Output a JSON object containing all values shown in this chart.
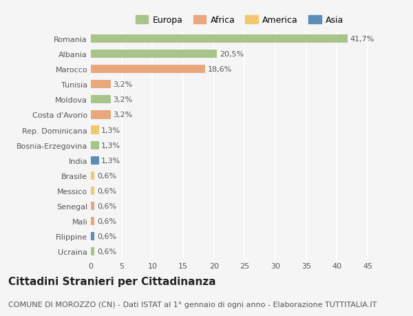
{
  "categories": [
    "Romania",
    "Albania",
    "Marocco",
    "Tunisia",
    "Moldova",
    "Costa d'Avorio",
    "Rep. Dominicana",
    "Bosnia-Erzegovina",
    "India",
    "Brasile",
    "Messico",
    "Senegal",
    "Mali",
    "Filippine",
    "Ucraina"
  ],
  "values": [
    41.7,
    20.5,
    18.6,
    3.2,
    3.2,
    3.2,
    1.3,
    1.3,
    1.3,
    0.6,
    0.6,
    0.6,
    0.6,
    0.6,
    0.6
  ],
  "labels": [
    "41,7%",
    "20,5%",
    "18,6%",
    "3,2%",
    "3,2%",
    "3,2%",
    "1,3%",
    "1,3%",
    "1,3%",
    "0,6%",
    "0,6%",
    "0,6%",
    "0,6%",
    "0,6%",
    "0,6%"
  ],
  "colors": [
    "#a8c48a",
    "#a8c48a",
    "#e8a87c",
    "#e8a87c",
    "#a8c48a",
    "#e8a87c",
    "#f0c96e",
    "#a8c48a",
    "#5b8db8",
    "#f0c96e",
    "#f0c96e",
    "#e8a87c",
    "#e8a87c",
    "#5b8db8",
    "#a8c48a"
  ],
  "legend_labels": [
    "Europa",
    "Africa",
    "America",
    "Asia"
  ],
  "legend_colors": [
    "#a8c48a",
    "#e8a87c",
    "#f0c96e",
    "#5b8db8"
  ],
  "xlim": [
    0,
    47
  ],
  "xticks": [
    0,
    5,
    10,
    15,
    20,
    25,
    30,
    35,
    40,
    45
  ],
  "title": "Cittadini Stranieri per Cittadinanza",
  "subtitle": "COMUNE DI MOROZZO (CN) - Dati ISTAT al 1° gennaio di ogni anno - Elaborazione TUTTITALIA.IT",
  "bg_color": "#f5f5f5",
  "bar_height": 0.55,
  "grid_color": "#ffffff",
  "title_fontsize": 11,
  "subtitle_fontsize": 8,
  "label_fontsize": 8,
  "tick_fontsize": 8,
  "legend_fontsize": 9
}
